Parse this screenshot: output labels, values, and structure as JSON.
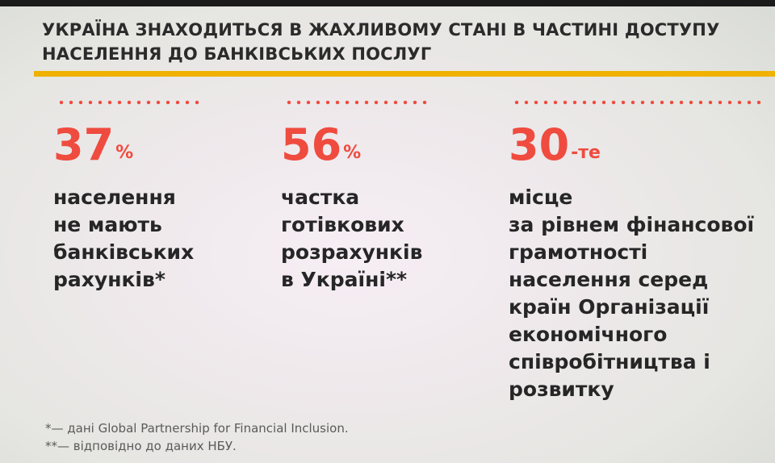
{
  "slide": {
    "title_lines": [
      "УКРАЇНА ЗНАХОДИТЬСЯ В ЖАХЛИВОМУ СТАНІ В ЧАСТИНІ ДОСТУПУ",
      "НАСЕЛЕННЯ ДО БАНКІВСЬКИХ ПОСЛУГ"
    ],
    "colors": {
      "accent": "#ef4b3f",
      "rule": "#f0b100",
      "text": "#262626"
    },
    "stats": [
      {
        "value": "37",
        "unit": "%",
        "lines": [
          "населення",
          "не мають",
          "банківських",
          "рахунків*"
        ]
      },
      {
        "value": "56",
        "unit": "%",
        "lines": [
          "частка",
          "готівкових",
          "розрахунків",
          "в Україні**"
        ]
      },
      {
        "value": "30",
        "unit": "-те",
        "lines": [
          "місце",
          "за рівнем фінансової",
          "грамотності",
          "населення серед",
          "країн Організації",
          "економічного",
          "співробітництва і",
          "розвитку"
        ]
      }
    ],
    "footnotes": [
      "*— дані Global Partnership for Financial Inclusion.",
      "**— відповідно до даних НБУ."
    ]
  }
}
